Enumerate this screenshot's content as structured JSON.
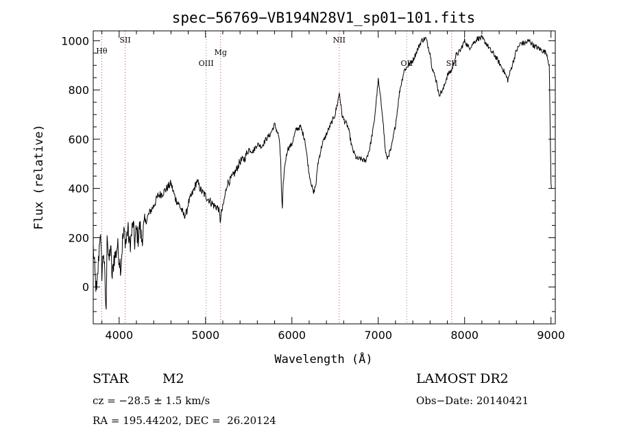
{
  "chart_data": {
    "type": "line",
    "title": "spec−56769−VB194N28V1_sp01−101.fits",
    "xlabel": "Wavelength (Å)",
    "ylabel": "Flux (relative)",
    "xlim": [
      3700,
      9050
    ],
    "ylim": [
      -150,
      1040
    ],
    "xticks": [
      4000,
      5000,
      6000,
      7000,
      8000,
      9000
    ],
    "yticks": [
      0,
      200,
      400,
      600,
      800,
      1000
    ],
    "grid": false,
    "series": [
      {
        "x": [
          3700,
          3720,
          3740,
          3760,
          3780,
          3800,
          3820,
          3840,
          3850,
          3860,
          3880,
          3900,
          3920,
          3940,
          3960,
          3980,
          4000,
          4020,
          4040,
          4060,
          4080,
          4100,
          4120,
          4140,
          4160,
          4180,
          4200,
          4220,
          4240,
          4260,
          4280,
          4300,
          4350,
          4400,
          4450,
          4500,
          4550,
          4600,
          4650,
          4700,
          4750,
          4780,
          4800,
          4850,
          4900,
          4950,
          5000,
          5050,
          5100,
          5150,
          5170,
          5190,
          5200,
          5220,
          5250,
          5300,
          5350,
          5400,
          5450,
          5500,
          5550,
          5600,
          5650,
          5700,
          5750,
          5800,
          5850,
          5870,
          5880,
          5890,
          5900,
          5920,
          5950,
          6000,
          6050,
          6100,
          6150,
          6200,
          6250,
          6280,
          6300,
          6350,
          6400,
          6450,
          6500,
          6530,
          6550,
          6580,
          6600,
          6650,
          6700,
          6750,
          6800,
          6850,
          6900,
          6950,
          7000,
          7050,
          7080,
          7100,
          7150,
          7180,
          7200,
          7250,
          7300,
          7350,
          7400,
          7450,
          7500,
          7550,
          7600,
          7620,
          7650,
          7680,
          7700,
          7750,
          7800,
          7850,
          7900,
          7950,
          8000,
          8050,
          8100,
          8150,
          8200,
          8250,
          8300,
          8350,
          8400,
          8450,
          8500,
          8550,
          8600,
          8650,
          8700,
          8750,
          8800,
          8850,
          8900,
          8950,
          8980,
          9000,
          9010
        ],
        "values": [
          160,
          50,
          -30,
          100,
          230,
          60,
          150,
          -20,
          -120,
          240,
          90,
          170,
          30,
          120,
          130,
          170,
          120,
          80,
          190,
          220,
          180,
          240,
          170,
          200,
          260,
          180,
          230,
          200,
          250,
          190,
          230,
          260,
          300,
          330,
          370,
          380,
          400,
          420,
          360,
          330,
          290,
          300,
          340,
          380,
          430,
          390,
          370,
          350,
          330,
          320,
          270,
          310,
          320,
          360,
          420,
          440,
          470,
          510,
          520,
          560,
          550,
          580,
          570,
          600,
          620,
          660,
          610,
          520,
          380,
          310,
          420,
          500,
          560,
          580,
          640,
          650,
          600,
          460,
          380,
          420,
          500,
          580,
          620,
          660,
          700,
          750,
          790,
          700,
          680,
          650,
          560,
          520,
          520,
          510,
          560,
          660,
          840,
          700,
          560,
          520,
          560,
          620,
          660,
          800,
          880,
          900,
          920,
          960,
          1000,
          1010,
          950,
          900,
          860,
          830,
          780,
          800,
          860,
          880,
          940,
          960,
          1000,
          970,
          990,
          1010,
          1010,
          990,
          960,
          940,
          910,
          880,
          840,
          900,
          960,
          990,
          990,
          1000,
          980,
          970,
          960,
          950,
          900,
          420,
          400
        ]
      }
    ],
    "line_markers": [
      {
        "label": "Hθ",
        "x": 3798,
        "color": "#c04040"
      },
      {
        "label": "SII",
        "x": 4070,
        "color": "#c04040"
      },
      {
        "label": "OIII",
        "x": 5007,
        "color": "#7a7aa0"
      },
      {
        "label": "Mg",
        "x": 5175,
        "color": "#c04040"
      },
      {
        "label": "NII",
        "x": 6548,
        "color": "#c04040"
      },
      {
        "label": "OII",
        "x": 7330,
        "color": "#7a7aa0"
      },
      {
        "label": "SII",
        "x": 7850,
        "color": "#c04040"
      }
    ]
  },
  "info": {
    "class": "STAR",
    "subclass": "M2",
    "survey": "LAMOST DR2",
    "cz": "cz = −28.5 ± 1.5 km/s",
    "obs_date": "Obs−Date: 20140421",
    "radec": "RA = 195.44202, DEC =  26.20124"
  }
}
